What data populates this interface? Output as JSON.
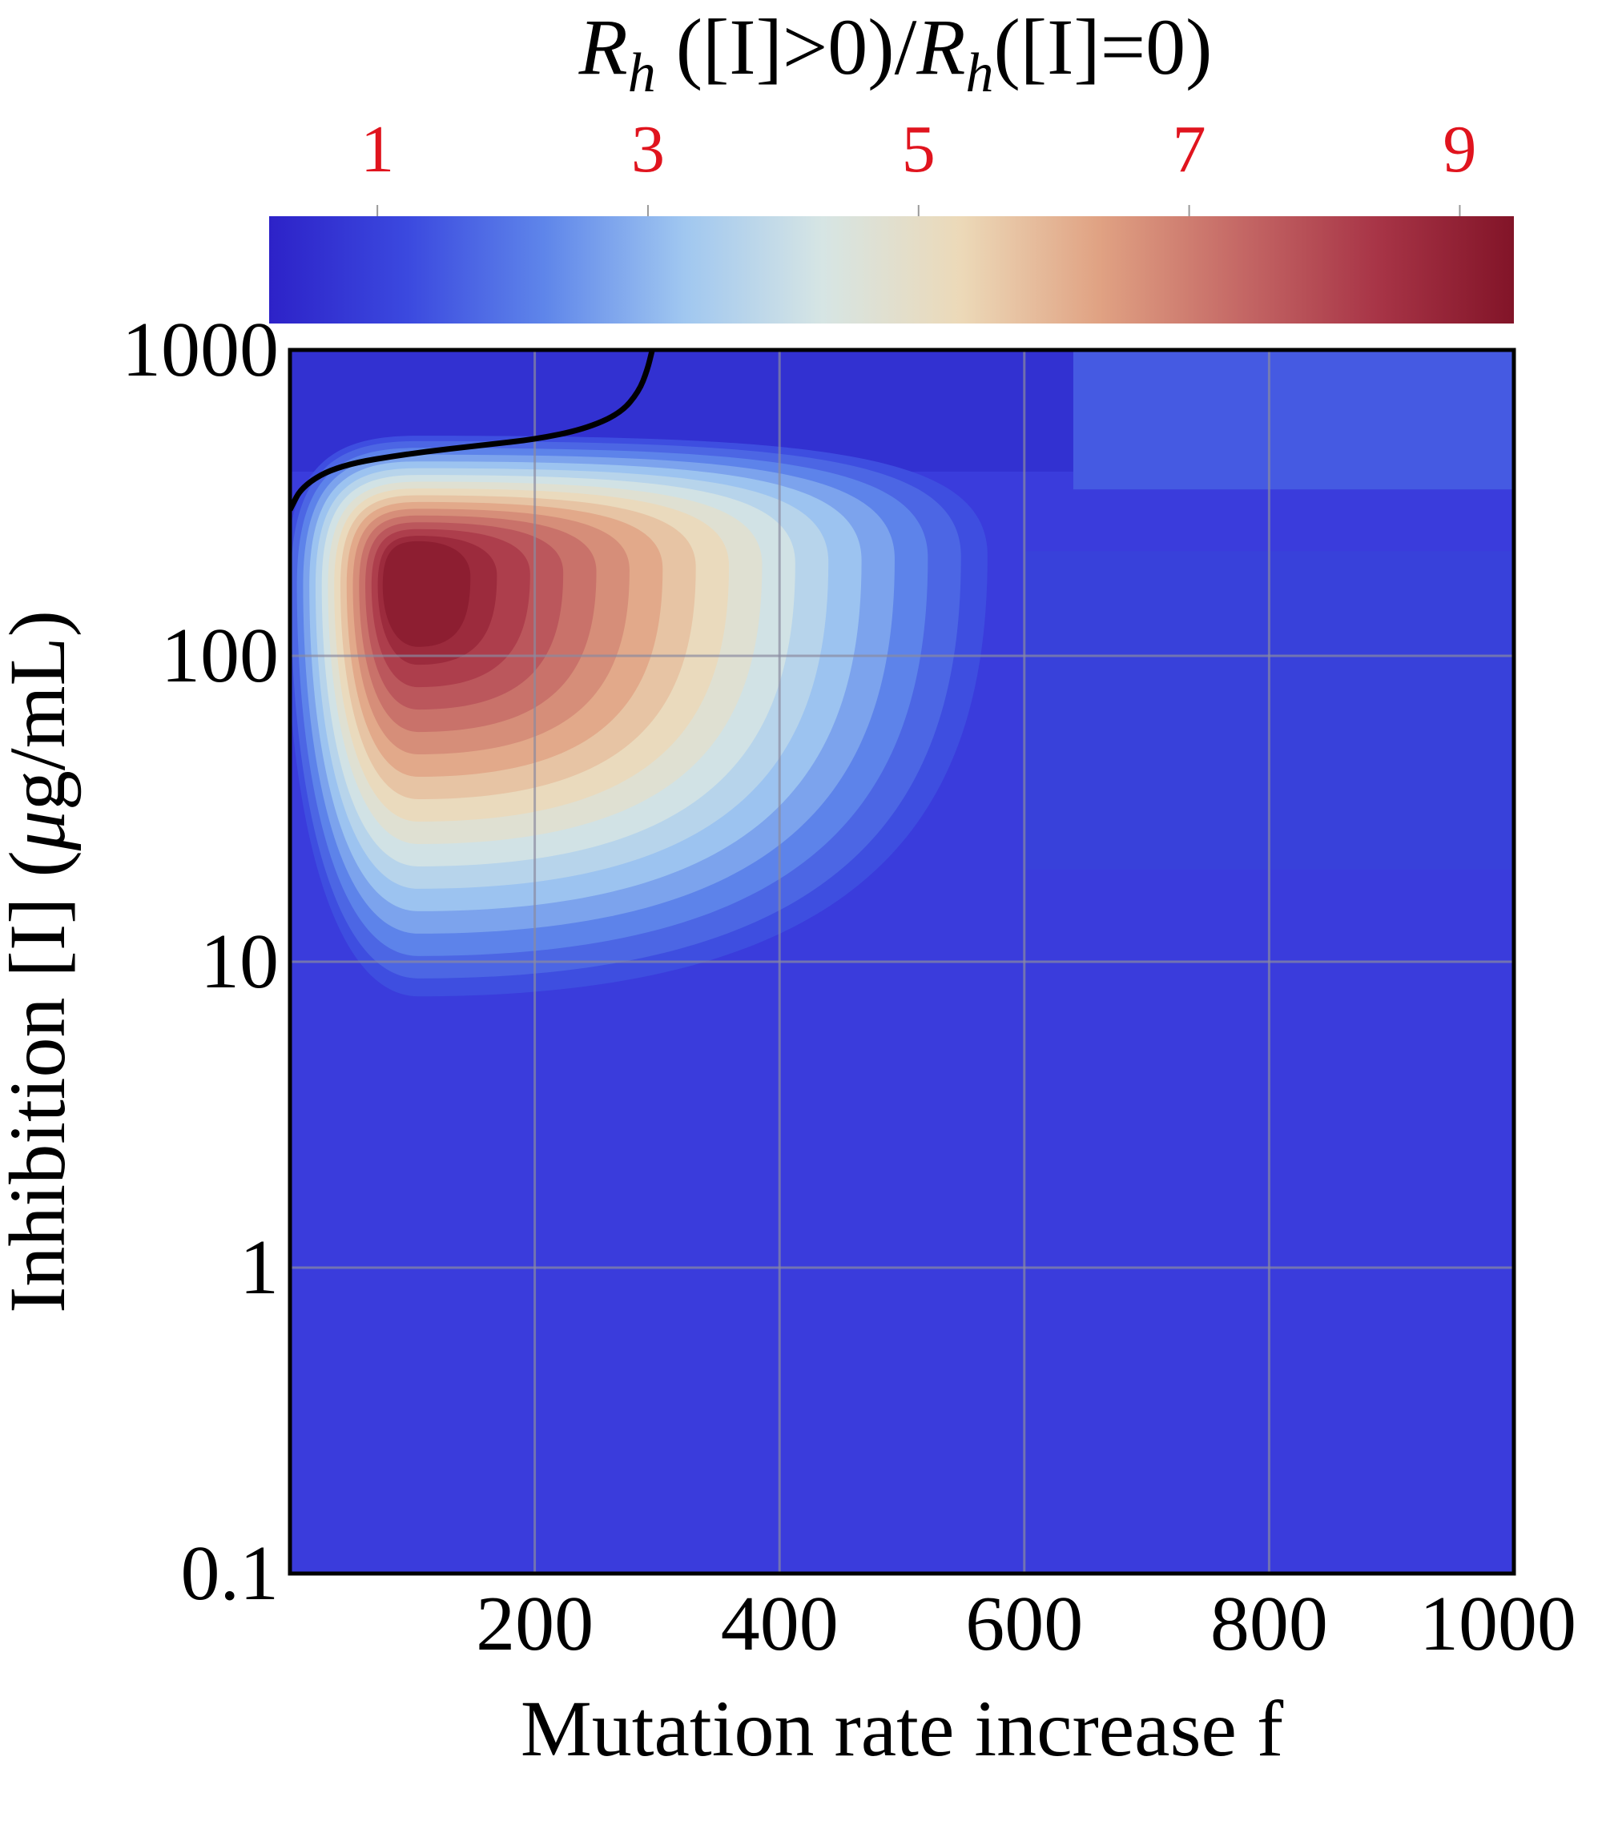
{
  "chart_data": {
    "type": "heatmap",
    "title": "",
    "colorbar": {
      "title_parts": [
        {
          "text": "R",
          "italic": true
        },
        {
          "text": "h",
          "italic": true,
          "sub": true
        },
        {
          "text": " ([I]>0)/",
          "italic": false
        },
        {
          "text": "R",
          "italic": true
        },
        {
          "text": "h",
          "italic": true,
          "sub": true
        },
        {
          "text": "([I]=0)",
          "italic": false
        }
      ],
      "ticks": [
        1,
        3,
        5,
        7,
        9
      ],
      "tick_labels": [
        "1",
        "3",
        "5",
        "7",
        "9"
      ],
      "range": [
        0.2,
        9.4
      ],
      "tick_color": "#e0141e",
      "colors": [
        "#2d22c8",
        "#3b49df",
        "#5f86ea",
        "#a0c7f0",
        "#d6e5e4",
        "#ecd9b8",
        "#e0a283",
        "#c56966",
        "#a83547",
        "#821428"
      ],
      "placement": "top"
    },
    "x_axis": {
      "label": "Mutation rate increase f",
      "range": [
        0,
        1000
      ],
      "scale": "linear",
      "ticks": [
        200,
        400,
        600,
        800,
        1000
      ],
      "tick_labels": [
        "200",
        "400",
        "600",
        "800",
        "1000"
      ]
    },
    "y_axis": {
      "label": "Inhibition [I] (μg/mL)",
      "label_parts": [
        {
          "text": "Inhibition [I] (",
          "italic": false
        },
        {
          "text": "μ",
          "italic": true
        },
        {
          "text": "g/mL)",
          "italic": false
        }
      ],
      "range": [
        0.1,
        1000
      ],
      "scale": "log",
      "ticks": [
        0.1,
        1,
        10,
        100,
        1000
      ],
      "tick_labels": [
        "0.1",
        "1",
        "10",
        "100",
        "1000"
      ]
    },
    "grid": true,
    "peak": {
      "f": 105,
      "I": 170,
      "value": 9.4
    },
    "background_value": 1.0,
    "upper_value": 0.6,
    "boundary_curve": {
      "level": 1,
      "points": [
        [
          0,
          300
        ],
        [
          10,
          360
        ],
        [
          40,
          420
        ],
        [
          100,
          460
        ],
        [
          160,
          490
        ],
        [
          200,
          510
        ],
        [
          240,
          550
        ],
        [
          270,
          620
        ],
        [
          285,
          730
        ],
        [
          292,
          860
        ],
        [
          296,
          1000
        ]
      ]
    },
    "contour_levels": [
      1.3,
      1.7,
      2.2,
      2.7,
      3.2,
      3.7,
      4.2,
      4.7,
      5.2,
      5.7,
      6.2,
      6.7,
      7.2,
      7.7,
      8.2,
      8.7,
      9.1
    ]
  }
}
